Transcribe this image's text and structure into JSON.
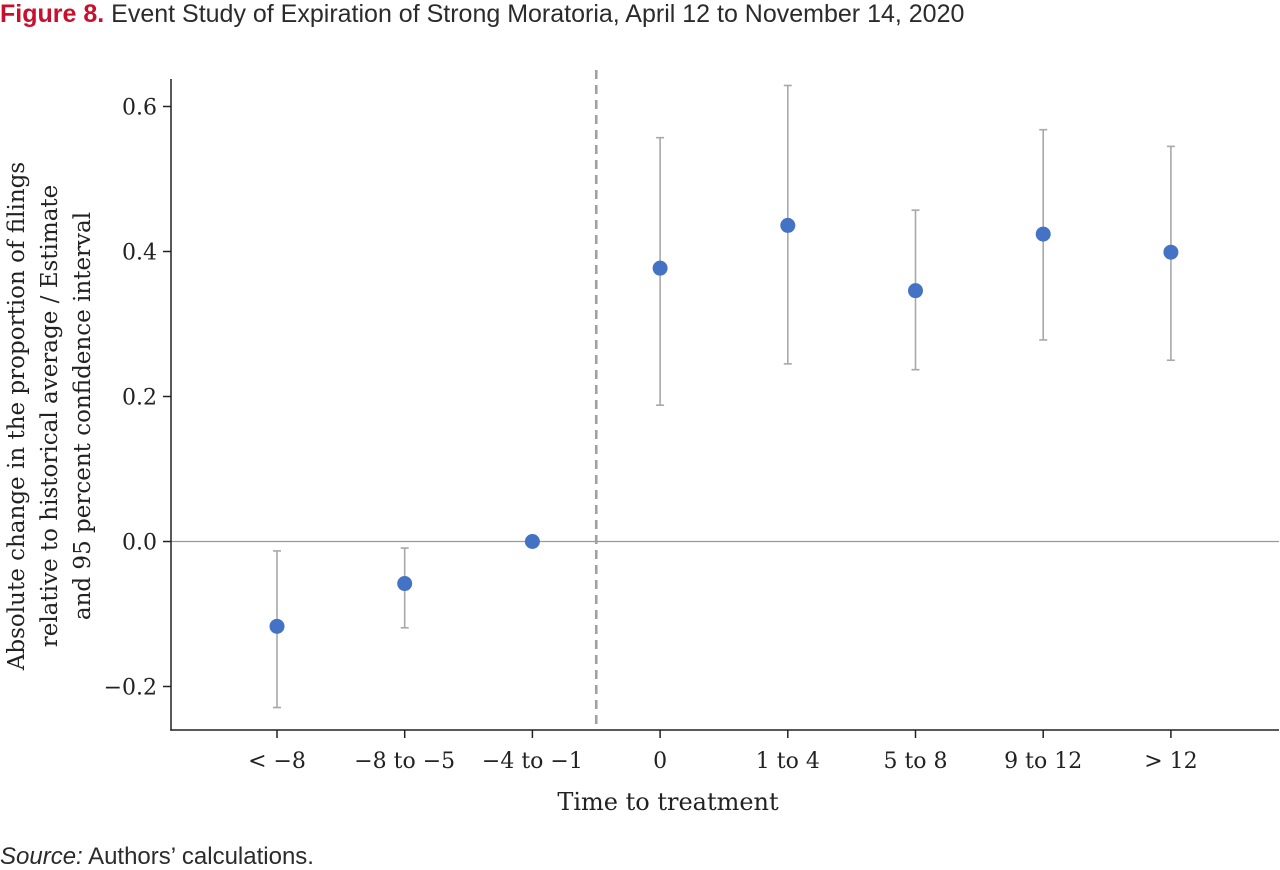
{
  "figure": {
    "label": "Figure 8.",
    "title": "Event Study of Expiration of Strong Moratoria, April 12 to November 14, 2020"
  },
  "source": {
    "prefix": "Source:",
    "text": "Authors’ calculations."
  },
  "colors": {
    "title_label": "#c8102e",
    "point": "#4472c4",
    "error_bar": "#a8a8a8",
    "axis": "#222222",
    "zero_line": "#999999",
    "treatment_line": "#a0a0a0"
  },
  "chart_data": {
    "type": "scatter",
    "subtype": "event-study point estimates with 95% confidence intervals",
    "xlabel": "Time to treatment",
    "ylabel": [
      "Absolute change in the proportion of filings",
      "relative to historical average / Estimate",
      "and 95 percent confidence interval"
    ],
    "categories": [
      "< −8",
      "−8 to −5",
      "−4 to −1",
      "0",
      "1 to 4",
      "5 to 8",
      "9 to 12",
      "> 12"
    ],
    "estimates": [
      -0.117,
      -0.058,
      0.0,
      0.377,
      0.436,
      0.346,
      0.424,
      0.399
    ],
    "ci_lower": [
      -0.229,
      -0.119,
      null,
      0.188,
      0.245,
      0.237,
      0.278,
      0.25
    ],
    "ci_upper": [
      -0.013,
      -0.009,
      null,
      0.557,
      0.629,
      0.457,
      0.568,
      0.545
    ],
    "yticks": [
      -0.2,
      0.0,
      0.2,
      0.4,
      0.6
    ],
    "ytick_labels": [
      "−0.2",
      "0.0",
      "0.2",
      "0.4",
      "0.6"
    ],
    "ylim": [
      -0.262,
      0.642
    ],
    "reference_line_y": 0.0,
    "treatment_line_between": [
      "−4 to −1",
      "0"
    ],
    "grid": false,
    "legend": "none"
  }
}
